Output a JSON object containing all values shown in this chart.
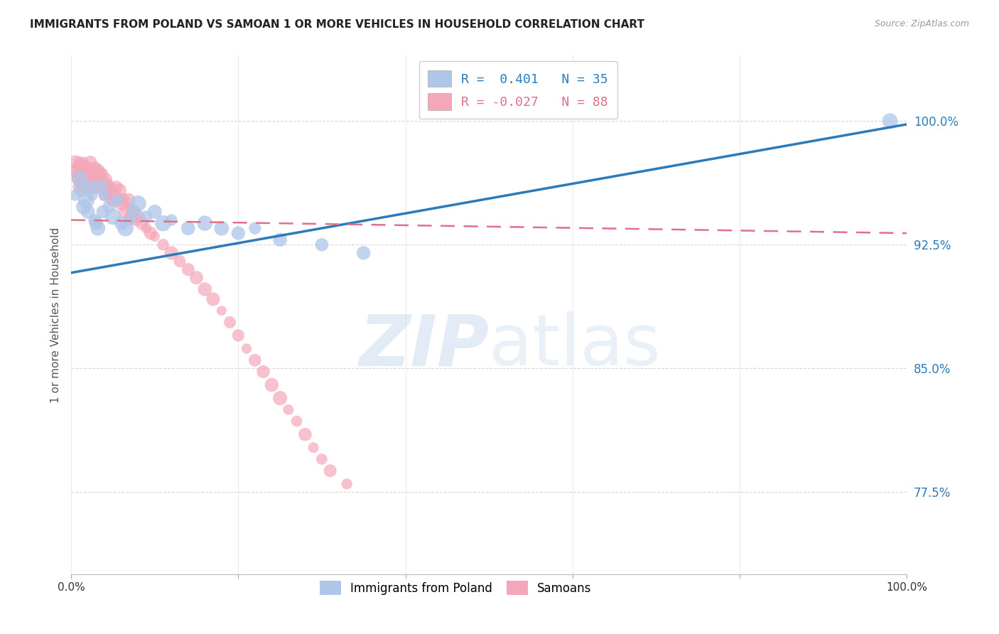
{
  "title": "IMMIGRANTS FROM POLAND VS SAMOAN 1 OR MORE VEHICLES IN HOUSEHOLD CORRELATION CHART",
  "source": "Source: ZipAtlas.com",
  "ylabel": "1 or more Vehicles in Household",
  "xlim": [
    0.0,
    1.0
  ],
  "ylim": [
    0.725,
    1.04
  ],
  "yticks": [
    0.775,
    0.85,
    0.925,
    1.0
  ],
  "ytick_labels": [
    "77.5%",
    "85.0%",
    "92.5%",
    "100.0%"
  ],
  "xticks": [
    0.0,
    0.2,
    0.4,
    0.6,
    0.8,
    1.0
  ],
  "xtick_labels": [
    "0.0%",
    "",
    "",
    "",
    "",
    "100.0%"
  ],
  "poland_R": 0.401,
  "poland_N": 35,
  "samoan_R": -0.027,
  "samoan_N": 88,
  "poland_color": "#aec6e8",
  "samoan_color": "#f4a7b9",
  "poland_line_color": "#2b7bba",
  "samoan_line_color": "#e0708a",
  "background_color": "#ffffff",
  "poland_line_x": [
    0.0,
    1.0
  ],
  "poland_line_y": [
    0.908,
    0.998
  ],
  "samoan_line_x": [
    0.0,
    1.0
  ],
  "samoan_line_y": [
    0.94,
    0.932
  ],
  "poland_points_x": [
    0.005,
    0.01,
    0.012,
    0.015,
    0.018,
    0.02,
    0.022,
    0.025,
    0.028,
    0.03,
    0.032,
    0.035,
    0.038,
    0.04,
    0.045,
    0.05,
    0.055,
    0.06,
    0.065,
    0.07,
    0.075,
    0.08,
    0.09,
    0.1,
    0.11,
    0.12,
    0.14,
    0.16,
    0.18,
    0.2,
    0.22,
    0.25,
    0.3,
    0.35,
    0.98
  ],
  "poland_points_y": [
    0.955,
    0.965,
    0.958,
    0.948,
    0.952,
    0.945,
    0.96,
    0.955,
    0.94,
    0.938,
    0.935,
    0.96,
    0.945,
    0.955,
    0.948,
    0.942,
    0.952,
    0.938,
    0.935,
    0.94,
    0.945,
    0.95,
    0.942,
    0.945,
    0.938,
    0.94,
    0.935,
    0.938,
    0.935,
    0.932,
    0.935,
    0.928,
    0.925,
    0.92,
    1.0
  ],
  "samoan_points_x": [
    0.005,
    0.006,
    0.007,
    0.008,
    0.008,
    0.009,
    0.01,
    0.01,
    0.011,
    0.012,
    0.012,
    0.013,
    0.014,
    0.015,
    0.015,
    0.016,
    0.017,
    0.018,
    0.018,
    0.019,
    0.02,
    0.021,
    0.022,
    0.022,
    0.023,
    0.024,
    0.025,
    0.026,
    0.027,
    0.028,
    0.029,
    0.03,
    0.031,
    0.032,
    0.033,
    0.034,
    0.035,
    0.036,
    0.037,
    0.038,
    0.04,
    0.041,
    0.042,
    0.043,
    0.044,
    0.045,
    0.046,
    0.048,
    0.05,
    0.052,
    0.054,
    0.056,
    0.058,
    0.06,
    0.062,
    0.065,
    0.068,
    0.07,
    0.072,
    0.075,
    0.078,
    0.08,
    0.085,
    0.09,
    0.095,
    0.1,
    0.11,
    0.12,
    0.13,
    0.14,
    0.15,
    0.16,
    0.17,
    0.18,
    0.19,
    0.2,
    0.21,
    0.22,
    0.23,
    0.24,
    0.25,
    0.26,
    0.27,
    0.28,
    0.29,
    0.3,
    0.31,
    0.33
  ],
  "samoan_points_y": [
    0.975,
    0.97,
    0.968,
    0.965,
    0.972,
    0.96,
    0.975,
    0.968,
    0.972,
    0.965,
    0.97,
    0.962,
    0.968,
    0.975,
    0.96,
    0.968,
    0.965,
    0.972,
    0.96,
    0.968,
    0.965,
    0.97,
    0.962,
    0.968,
    0.975,
    0.96,
    0.965,
    0.97,
    0.962,
    0.968,
    0.972,
    0.96,
    0.965,
    0.97,
    0.962,
    0.968,
    0.96,
    0.965,
    0.968,
    0.962,
    0.955,
    0.96,
    0.965,
    0.958,
    0.962,
    0.955,
    0.96,
    0.958,
    0.952,
    0.955,
    0.96,
    0.952,
    0.958,
    0.95,
    0.952,
    0.945,
    0.952,
    0.948,
    0.942,
    0.945,
    0.94,
    0.942,
    0.938,
    0.935,
    0.932,
    0.93,
    0.925,
    0.92,
    0.915,
    0.91,
    0.905,
    0.898,
    0.892,
    0.885,
    0.878,
    0.87,
    0.862,
    0.855,
    0.848,
    0.84,
    0.832,
    0.825,
    0.818,
    0.81,
    0.802,
    0.795,
    0.788,
    0.78
  ]
}
